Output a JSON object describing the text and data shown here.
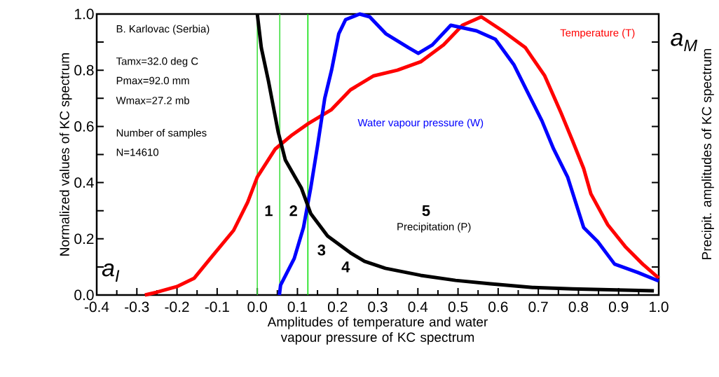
{
  "chart_data": {
    "type": "line",
    "xlabel": "Amplitudes of temperature and water vapour pressure of KC spectrum",
    "ylabel": "Normalized values of KC spectrum",
    "y2label": "Precipit. amplitudes of KC spectrum",
    "xlim": [
      -0.4,
      1.0
    ],
    "ylim": [
      0,
      1.0
    ],
    "xticks": [
      {
        "value": -0.4,
        "label": "-0.4"
      },
      {
        "value": -0.3,
        "label": "-0.3"
      },
      {
        "value": -0.2,
        "label": "-0.2"
      },
      {
        "value": -0.1,
        "label": "-0.1"
      },
      {
        "value": 0.0,
        "label": "0.0"
      },
      {
        "value": 0.1,
        "label": "0.1"
      },
      {
        "value": 0.2,
        "label": "0.2"
      },
      {
        "value": 0.3,
        "label": "0.3"
      },
      {
        "value": 0.4,
        "label": "0.4"
      },
      {
        "value": 0.5,
        "label": "0.5"
      },
      {
        "value": 0.6,
        "label": "0.6"
      },
      {
        "value": 0.7,
        "label": "0.7"
      },
      {
        "value": 0.8,
        "label": "0.8"
      },
      {
        "value": 0.9,
        "label": "0.9"
      },
      {
        "value": 1.0,
        "label": "1.0"
      }
    ],
    "yticks": [
      {
        "value": 0.0,
        "label": "0.0"
      },
      {
        "value": 0.1,
        "label": null
      },
      {
        "value": 0.2,
        "label": "0.2"
      },
      {
        "value": 0.3,
        "label": null
      },
      {
        "value": 0.4,
        "label": "0.4"
      },
      {
        "value": 0.5,
        "label": null
      },
      {
        "value": 0.6,
        "label": "0.6"
      },
      {
        "value": 0.7,
        "label": null
      },
      {
        "value": 0.8,
        "label": "0.8"
      },
      {
        "value": 0.9,
        "label": null
      },
      {
        "value": 1.0,
        "label": "1.0"
      }
    ],
    "line_style": "solid",
    "series": [
      {
        "name": "Temperature (T)",
        "color": "#ff0000",
        "x": [
          -0.28,
          -0.25,
          -0.2,
          -0.157,
          -0.117,
          -0.059,
          -0.024,
          0.0,
          0.045,
          0.087,
          0.127,
          0.185,
          0.232,
          0.29,
          0.349,
          0.407,
          0.464,
          0.511,
          0.558,
          0.611,
          0.668,
          0.716,
          0.756,
          0.785,
          0.813,
          0.831,
          0.873,
          0.918,
          0.96,
          1.0
        ],
        "values": [
          0.0,
          0.01,
          0.03,
          0.06,
          0.13,
          0.23,
          0.33,
          0.42,
          0.52,
          0.57,
          0.61,
          0.66,
          0.73,
          0.78,
          0.8,
          0.83,
          0.89,
          0.96,
          0.99,
          0.94,
          0.88,
          0.78,
          0.65,
          0.55,
          0.45,
          0.36,
          0.25,
          0.17,
          0.11,
          0.06
        ]
      },
      {
        "name": "Water vapour pressure (W)",
        "color": "#0000ff",
        "x": [
          0.055,
          0.058,
          0.092,
          0.115,
          0.133,
          0.15,
          0.168,
          0.185,
          0.203,
          0.22,
          0.255,
          0.28,
          0.32,
          0.377,
          0.401,
          0.436,
          0.482,
          0.546,
          0.593,
          0.639,
          0.674,
          0.709,
          0.738,
          0.773,
          0.813,
          0.848,
          0.89,
          0.948,
          1.0
        ],
        "values": [
          0.0,
          0.035,
          0.13,
          0.24,
          0.38,
          0.53,
          0.7,
          0.8,
          0.93,
          0.98,
          1.0,
          0.99,
          0.93,
          0.88,
          0.86,
          0.89,
          0.96,
          0.94,
          0.91,
          0.82,
          0.72,
          0.62,
          0.52,
          0.42,
          0.24,
          0.19,
          0.11,
          0.08,
          0.05
        ]
      },
      {
        "name": "Precipitation (P)",
        "color": "#000000",
        "x": [
          0.0,
          0.01,
          0.028,
          0.052,
          0.07,
          0.11,
          0.133,
          0.175,
          0.232,
          0.267,
          0.319,
          0.407,
          0.494,
          0.581,
          0.686,
          0.785,
          0.988
        ],
        "values": [
          1.0,
          0.88,
          0.76,
          0.58,
          0.48,
          0.38,
          0.29,
          0.21,
          0.15,
          0.12,
          0.095,
          0.07,
          0.052,
          0.04,
          0.027,
          0.022,
          0.015
        ]
      }
    ],
    "ref_lines": [
      {
        "axis": "x",
        "value": 0.0,
        "color": "#33dd33"
      },
      {
        "axis": "x",
        "value": 0.056,
        "color": "#33dd33"
      },
      {
        "axis": "x",
        "value": 0.126,
        "color": "#00dd00"
      }
    ],
    "annotations": [
      "B. Karlovac (Serbia)",
      "Tamx=32.0 deg C",
      "Pmax=92.0 mm",
      "Wmax=27.2 mb",
      "Number of samples",
      "N=14610",
      "1",
      "2",
      "3",
      "4",
      "5",
      "a$_{I}$",
      "a$_{M}$"
    ]
  }
}
